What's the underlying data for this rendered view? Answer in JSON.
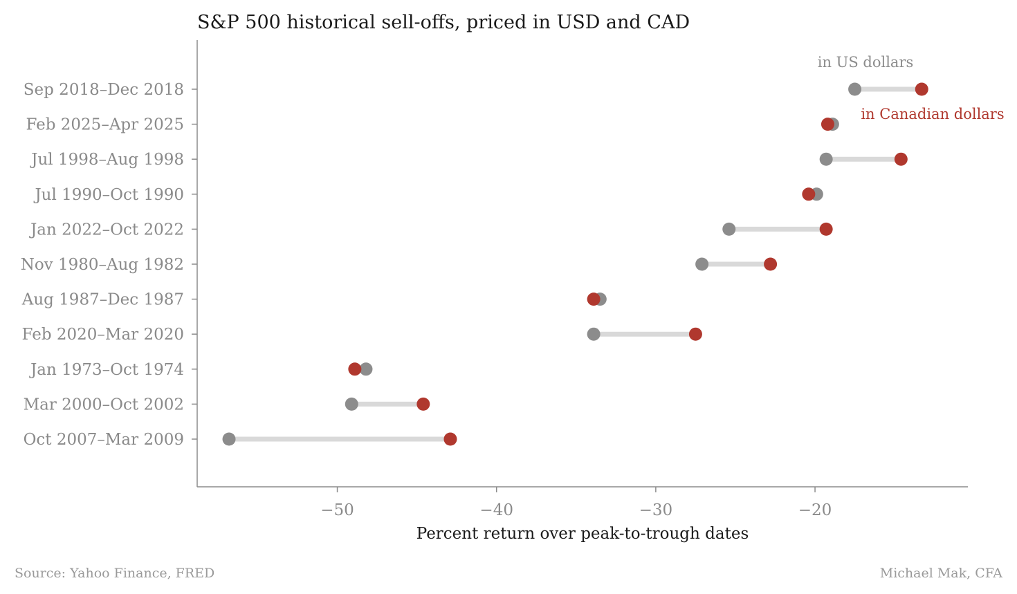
{
  "chart_data": {
    "type": "dumbbell",
    "title": "S&P 500 historical sell-offs, priced in USD and CAD",
    "xlabel": "Percent return over peak-to-trough dates",
    "ylabel": "",
    "xlim": [
      -58.8,
      -10.4
    ],
    "xticks": [
      -50,
      -40,
      -30,
      -20
    ],
    "xtick_labels": [
      "−50",
      "−40",
      "−30",
      "−20"
    ],
    "grid": false,
    "categories": [
      "Sep 2018–Dec 2018",
      "Feb 2025–Apr 2025",
      "Jul 1998–Aug 1998",
      "Jul 1990–Oct 1990",
      "Jan 2022–Oct 2022",
      "Nov 1980–Aug 1982",
      "Aug 1987–Dec 1987",
      "Feb 2020–Mar 2020",
      "Jan 1973–Oct 1974",
      "Mar 2000–Oct 2002",
      "Oct 2007–Mar 2009"
    ],
    "series": [
      {
        "name": "in US dollars",
        "color": "#8c8c8c",
        "values": [
          -17.5,
          -18.9,
          -19.3,
          -19.9,
          -25.4,
          -27.1,
          -33.5,
          -33.9,
          -48.2,
          -49.1,
          -56.8
        ]
      },
      {
        "name": "in Canadian dollars",
        "color": "#b0382e",
        "values": [
          -13.3,
          -19.2,
          -14.6,
          -20.4,
          -19.3,
          -22.8,
          -33.9,
          -27.5,
          -48.9,
          -44.6,
          -42.9
        ]
      }
    ],
    "connector_color": "#d9d9d9",
    "legend": "inline annotations near top-right"
  },
  "footer": {
    "source": "Source: Yahoo Finance, FRED",
    "credit": "Michael Mak, CFA"
  }
}
